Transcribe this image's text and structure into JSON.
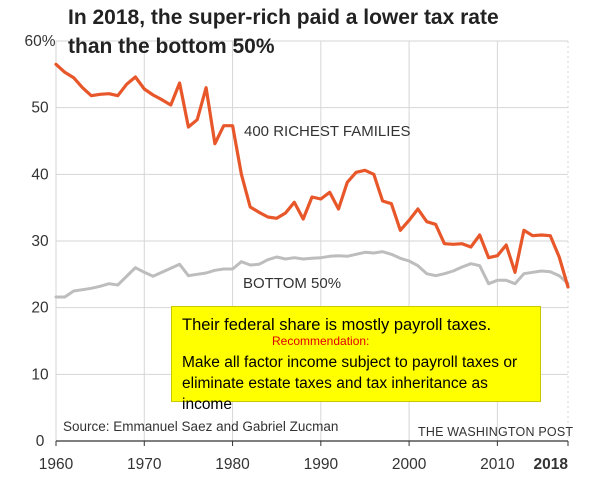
{
  "title_lines": [
    "In 2018, the super-rich paid a lower tax rate",
    "than the bottom 50%"
  ],
  "chart_data": {
    "type": "line",
    "title": "In 2018, the super-rich paid a lower tax rate than the bottom 50%",
    "xlim": [
      1960,
      2018
    ],
    "ylim": [
      0,
      60
    ],
    "x_ticks": [
      "1960",
      "1970",
      "1980",
      "1990",
      "2000",
      "2010",
      "2018"
    ],
    "x_tick_values": [
      1960,
      1970,
      1980,
      1990,
      2000,
      2010,
      2018
    ],
    "y_ticks": [
      "0",
      "10",
      "20",
      "30",
      "40",
      "50",
      "60%"
    ],
    "y_tick_values": [
      0,
      10,
      20,
      30,
      40,
      50,
      60
    ],
    "grid": true,
    "series": [
      {
        "name": "400 RICHEST FAMILIES",
        "color": "#e8572a",
        "x": [
          1960,
          1961,
          1962,
          1963,
          1964,
          1965,
          1966,
          1967,
          1968,
          1969,
          1970,
          1971,
          1972,
          1973,
          1974,
          1975,
          1976,
          1977,
          1978,
          1979,
          1980,
          1981,
          1982,
          1983,
          1984,
          1985,
          1986,
          1987,
          1988,
          1989,
          1990,
          1991,
          1992,
          1993,
          1994,
          1995,
          1996,
          1997,
          1998,
          1999,
          2000,
          2001,
          2002,
          2003,
          2004,
          2005,
          2006,
          2007,
          2008,
          2009,
          2010,
          2011,
          2012,
          2013,
          2014,
          2015,
          2016,
          2017,
          2018
        ],
        "values": [
          56.5,
          55.3,
          54.5,
          53,
          51.8,
          52,
          52.1,
          51.8,
          53.5,
          54.6,
          52.8,
          51.9,
          51.2,
          50.4,
          53.7,
          47.1,
          48.2,
          53,
          44.6,
          47.3,
          47.3,
          40,
          35.1,
          34.3,
          33.6,
          33.4,
          34.2,
          35.8,
          33.3,
          36.6,
          36.3,
          37.3,
          34.8,
          38.8,
          40.3,
          40.6,
          40,
          36,
          35.6,
          31.6,
          33.1,
          34.8,
          32.9,
          32.5,
          29.6,
          29.5,
          29.6,
          29.1,
          30.9,
          27.5,
          27.8,
          29.4,
          25.3,
          31.6,
          30.8,
          30.9,
          30.8,
          27.6,
          23.1
        ]
      },
      {
        "name": "BOTTOM 50%",
        "color": "#bdbdbd",
        "x": [
          1960,
          1961,
          1962,
          1963,
          1964,
          1965,
          1966,
          1967,
          1968,
          1969,
          1970,
          1971,
          1972,
          1973,
          1974,
          1975,
          1976,
          1977,
          1978,
          1979,
          1980,
          1981,
          1982,
          1983,
          1984,
          1985,
          1986,
          1987,
          1988,
          1989,
          1990,
          1991,
          1992,
          1993,
          1994,
          1995,
          1996,
          1997,
          1998,
          1999,
          2000,
          2001,
          2002,
          2003,
          2004,
          2005,
          2006,
          2007,
          2008,
          2009,
          2010,
          2011,
          2012,
          2013,
          2014,
          2015,
          2016,
          2017,
          2018
        ],
        "values": [
          21.6,
          21.6,
          22.5,
          22.7,
          22.9,
          23.2,
          23.6,
          23.4,
          24.7,
          26,
          25.3,
          24.7,
          25.3,
          25.9,
          26.5,
          24.8,
          25,
          25.2,
          25.6,
          25.8,
          25.8,
          26.9,
          26.4,
          26.5,
          27.2,
          27.6,
          27.3,
          27.5,
          27.3,
          27.4,
          27.5,
          27.7,
          27.8,
          27.7,
          28,
          28.3,
          28.2,
          28.4,
          28,
          27.4,
          27,
          26.3,
          25.1,
          24.8,
          25.1,
          25.5,
          26.1,
          26.6,
          26.3,
          23.6,
          24.1,
          24.1,
          23.6,
          25.1,
          25.3,
          25.5,
          25.4,
          24.8,
          23.6
        ]
      }
    ],
    "annotations": [
      "400 RICHEST FAMILIES",
      "BOTTOM 50%"
    ],
    "source": "Source: Emmanuel Saez and Gabriel Zucman",
    "credit": "THE WASHINGTON POST"
  },
  "note": {
    "headline": "Their federal share is mostly payroll taxes.",
    "recommendation_label": "Recommendation:",
    "body": "Make all factor income subject to payroll taxes or eliminate estate taxes and tax inheritance as income",
    "background": "#ffff00",
    "recommendation_color": "#e00000"
  },
  "colors": {
    "grid": "#d6d6d6",
    "axis": "#333333"
  }
}
